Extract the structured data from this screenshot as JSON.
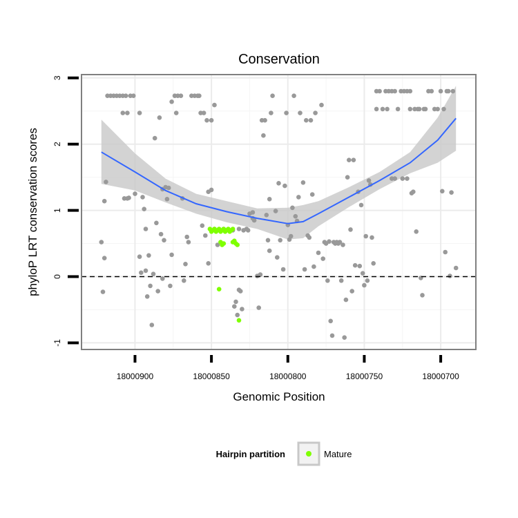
{
  "chart_data": {
    "type": "scatter",
    "title": "Conservation",
    "xlabel": "Genomic Position",
    "ylabel": "phyloP LRT conservation scores",
    "x_reversed": true,
    "xlim": [
      18000935,
      18000677
    ],
    "ylim": [
      -1.1,
      3.05
    ],
    "x_ticks": [
      18000900,
      18000850,
      18000800,
      18000750,
      18000700
    ],
    "x_tick_labels": [
      "18000900",
      "18000850",
      "18000800",
      "18000750",
      "18000700"
    ],
    "y_ticks": [
      -1,
      0,
      1,
      2,
      3
    ],
    "y_tick_labels": [
      "-1",
      "0",
      "1",
      "2",
      "3"
    ],
    "grid": true,
    "reference_line": {
      "y": 0,
      "style": "dashed"
    },
    "legend": {
      "title": "Hairpin partition",
      "placement": "bottom",
      "entries": [
        {
          "label": "Mature",
          "color": "#7fff00"
        }
      ]
    },
    "colors": {
      "points": "#999999",
      "mature": "#7fff00",
      "smooth": "#3366ff",
      "ribbon": "#c8c8c8"
    },
    "smooth": {
      "x": [
        18000922,
        18000900,
        18000880,
        18000860,
        18000840,
        18000820,
        18000800,
        18000790,
        18000780,
        18000760,
        18000740,
        18000720,
        18000702,
        18000690
      ],
      "y": [
        1.88,
        1.58,
        1.3,
        1.1,
        0.98,
        0.88,
        0.8,
        0.83,
        0.95,
        1.2,
        1.45,
        1.72,
        2.06,
        2.39
      ],
      "lower": [
        1.4,
        1.3,
        1.12,
        0.95,
        0.82,
        0.72,
        0.56,
        0.58,
        0.76,
        1.05,
        1.32,
        1.56,
        1.72,
        1.9
      ],
      "upper": [
        2.37,
        1.86,
        1.48,
        1.25,
        1.14,
        1.03,
        1.04,
        1.08,
        1.14,
        1.35,
        1.58,
        1.88,
        2.4,
        2.88
      ]
    },
    "series": [
      {
        "group": "other",
        "points": [
          [
            18000922,
            0.52
          ],
          [
            18000921,
            -0.23
          ],
          [
            18000920,
            0.28
          ],
          [
            18000920,
            1.14
          ],
          [
            18000919,
            1.43
          ],
          [
            18000918,
            2.73
          ],
          [
            18000916,
            2.73
          ],
          [
            18000914,
            2.73
          ],
          [
            18000912,
            2.73
          ],
          [
            18000910,
            2.73
          ],
          [
            18000908,
            2.73
          ],
          [
            18000906,
            2.73
          ],
          [
            18000903,
            2.73
          ],
          [
            18000901,
            2.73
          ],
          [
            18000908,
            2.47
          ],
          [
            18000905,
            2.47
          ],
          [
            18000897,
            2.47
          ],
          [
            18000907,
            1.18
          ],
          [
            18000905,
            1.18
          ],
          [
            18000904,
            1.19
          ],
          [
            18000900,
            1.25
          ],
          [
            18000897,
            0.3
          ],
          [
            18000896,
            0.06
          ],
          [
            18000895,
            1.2
          ],
          [
            18000894,
            1.02
          ],
          [
            18000893,
            0.09
          ],
          [
            18000893,
            0.72
          ],
          [
            18000892,
            -0.3
          ],
          [
            18000891,
            0.32
          ],
          [
            18000890,
            -0.14
          ],
          [
            18000889,
            -0.73
          ],
          [
            18000888,
            0.04
          ],
          [
            18000887,
            2.09
          ],
          [
            18000886,
            0.81
          ],
          [
            18000885,
            -0.22
          ],
          [
            18000884,
            2.4
          ],
          [
            18000882,
            1.32
          ],
          [
            18000883,
            0.64
          ],
          [
            18000882,
            -0.03
          ],
          [
            18000881,
            0.55
          ],
          [
            18000880,
            1.35
          ],
          [
            18000879,
            1.17
          ],
          [
            18000878,
            1.34
          ],
          [
            18000877,
            -0.14
          ],
          [
            18000876,
            0.33
          ],
          [
            18000876,
            2.64
          ],
          [
            18000874,
            2.73
          ],
          [
            18000873,
            2.47
          ],
          [
            18000872,
            2.73
          ],
          [
            18000870,
            2.73
          ],
          [
            18000869,
            1.18
          ],
          [
            18000868,
            -0.06
          ],
          [
            18000867,
            0.19
          ],
          [
            18000866,
            0.6
          ],
          [
            18000865,
            0.52
          ],
          [
            18000863,
            2.73
          ],
          [
            18000861,
            2.73
          ],
          [
            18000859,
            2.73
          ],
          [
            18000858,
            2.73
          ],
          [
            18000857,
            2.47
          ],
          [
            18000855,
            2.47
          ],
          [
            18000853,
            2.36
          ],
          [
            18000850,
            2.36
          ],
          [
            18000848,
            2.59
          ],
          [
            18000852,
            1.28
          ],
          [
            18000850,
            1.31
          ],
          [
            18000856,
            0.77
          ],
          [
            18000854,
            0.62
          ],
          [
            18000852,
            0.2
          ],
          [
            18000848,
            0.72
          ],
          [
            18000846,
            0.48
          ],
          [
            18000842,
            0.72
          ],
          [
            18000840,
            0.7
          ],
          [
            18000836,
            0.7
          ],
          [
            18000835,
            -0.45
          ],
          [
            18000834,
            -0.38
          ],
          [
            18000833,
            -0.58
          ],
          [
            18000832,
            -0.2
          ],
          [
            18000831,
            -0.22
          ],
          [
            18000830,
            -0.49
          ],
          [
            18000832,
            0.72
          ],
          [
            18000829,
            0.7
          ],
          [
            18000827,
            0.72
          ],
          [
            18000826,
            0.7
          ],
          [
            18000825,
            0.95
          ],
          [
            18000823,
            0.97
          ],
          [
            18000823,
            0.88
          ],
          [
            18000822,
            0.85
          ],
          [
            18000820,
            0.01
          ],
          [
            18000819,
            -0.47
          ],
          [
            18000818,
            0.03
          ],
          [
            18000817,
            2.36
          ],
          [
            18000816,
            2.13
          ],
          [
            18000815,
            2.36
          ],
          [
            18000814,
            0.93
          ],
          [
            18000813,
            0.55
          ],
          [
            18000812,
            0.39
          ],
          [
            18000812,
            1.17
          ],
          [
            18000811,
            2.47
          ],
          [
            18000810,
            2.73
          ],
          [
            18000808,
            0.99
          ],
          [
            18000807,
            0.29
          ],
          [
            18000806,
            1.41
          ],
          [
            18000805,
            0.55
          ],
          [
            18000803,
            0.11
          ],
          [
            18000802,
            1.37
          ],
          [
            18000801,
            2.47
          ],
          [
            18000800,
            0.78
          ],
          [
            18000799,
            0.56
          ],
          [
            18000798,
            0.61
          ],
          [
            18000797,
            1.04
          ],
          [
            18000796,
            2.73
          ],
          [
            18000795,
            0.91
          ],
          [
            18000794,
            0.84
          ],
          [
            18000793,
            1.2
          ],
          [
            18000792,
            2.47
          ],
          [
            18000790,
            1.42
          ],
          [
            18000789,
            0.11
          ],
          [
            18000788,
            2.36
          ],
          [
            18000787,
            0.62
          ],
          [
            18000786,
            0.59
          ],
          [
            18000785,
            2.36
          ],
          [
            18000784,
            1.24
          ],
          [
            18000783,
            0.15
          ],
          [
            18000782,
            2.47
          ],
          [
            18000780,
            0.36
          ],
          [
            18000778,
            2.59
          ],
          [
            18000777,
            0.27
          ],
          [
            18000776,
            0.52
          ],
          [
            18000775,
            0.5
          ],
          [
            18000774,
            -0.06
          ],
          [
            18000773,
            0.53
          ],
          [
            18000772,
            -0.67
          ],
          [
            18000771,
            -0.89
          ],
          [
            18000770,
            0.52
          ],
          [
            18000769,
            0.5
          ],
          [
            18000768,
            0.52
          ],
          [
            18000767,
            0.5
          ],
          [
            18000766,
            0.52
          ],
          [
            18000765,
            -0.06
          ],
          [
            18000764,
            0.48
          ],
          [
            18000763,
            -0.92
          ],
          [
            18000762,
            -0.35
          ],
          [
            18000761,
            1.5
          ],
          [
            18000760,
            1.76
          ],
          [
            18000759,
            0.71
          ],
          [
            18000758,
            -0.22
          ],
          [
            18000757,
            1.76
          ],
          [
            18000756,
            0.17
          ],
          [
            18000754,
            1.28
          ],
          [
            18000753,
            0.16
          ],
          [
            18000752,
            1.08
          ],
          [
            18000751,
            0.05
          ],
          [
            18000750,
            -0.13
          ],
          [
            18000749,
            0.61
          ],
          [
            18000748,
            -0.06
          ],
          [
            18000747,
            1.45
          ],
          [
            18000746,
            1.39
          ],
          [
            18000745,
            0.59
          ],
          [
            18000744,
            0.2
          ],
          [
            18000742,
            2.8
          ],
          [
            18000742,
            2.53
          ],
          [
            18000740,
            2.8
          ],
          [
            18000738,
            2.53
          ],
          [
            18000736,
            2.8
          ],
          [
            18000734,
            2.8
          ],
          [
            18000732,
            2.8
          ],
          [
            18000730,
            2.8
          ],
          [
            18000735,
            2.53
          ],
          [
            18000732,
            1.48
          ],
          [
            18000730,
            1.48
          ],
          [
            18000728,
            2.53
          ],
          [
            18000726,
            2.8
          ],
          [
            18000724,
            2.8
          ],
          [
            18000722,
            2.8
          ],
          [
            18000720,
            2.8
          ],
          [
            18000725,
            1.48
          ],
          [
            18000722,
            1.48
          ],
          [
            18000720,
            2.53
          ],
          [
            18000719,
            1.26
          ],
          [
            18000718,
            1.28
          ],
          [
            18000717,
            2.53
          ],
          [
            18000716,
            0.68
          ],
          [
            18000715,
            2.53
          ],
          [
            18000714,
            2.53
          ],
          [
            18000713,
            -0.02
          ],
          [
            18000712,
            -0.28
          ],
          [
            18000711,
            2.53
          ],
          [
            18000710,
            2.53
          ],
          [
            18000708,
            2.8
          ],
          [
            18000706,
            2.8
          ],
          [
            18000704,
            2.53
          ],
          [
            18000702,
            2.53
          ],
          [
            18000700,
            2.8
          ],
          [
            18000699,
            1.29
          ],
          [
            18000698,
            2.53
          ],
          [
            18000697,
            0.37
          ],
          [
            18000696,
            2.8
          ],
          [
            18000695,
            2.8
          ],
          [
            18000694,
            0.01
          ],
          [
            18000693,
            1.27
          ],
          [
            18000692,
            2.8
          ],
          [
            18000690,
            0.13
          ]
        ]
      },
      {
        "group": "Mature",
        "points": [
          [
            18000851,
            0.72
          ],
          [
            18000850,
            0.68
          ],
          [
            18000849,
            0.7
          ],
          [
            18000848,
            0.72
          ],
          [
            18000847,
            0.68
          ],
          [
            18000846,
            0.7
          ],
          [
            18000845,
            0.72
          ],
          [
            18000844,
            0.68
          ],
          [
            18000843,
            0.7
          ],
          [
            18000842,
            0.72
          ],
          [
            18000841,
            0.68
          ],
          [
            18000840,
            0.7
          ],
          [
            18000839,
            0.72
          ],
          [
            18000838,
            0.68
          ],
          [
            18000837,
            0.7
          ],
          [
            18000836,
            0.72
          ],
          [
            18000844,
            0.52
          ],
          [
            18000843,
            0.48
          ],
          [
            18000842,
            0.5
          ],
          [
            18000836,
            0.52
          ],
          [
            18000835,
            0.54
          ],
          [
            18000834,
            0.5
          ],
          [
            18000833,
            0.48
          ],
          [
            18000845,
            -0.19
          ],
          [
            18000832,
            -0.66
          ]
        ]
      }
    ]
  }
}
